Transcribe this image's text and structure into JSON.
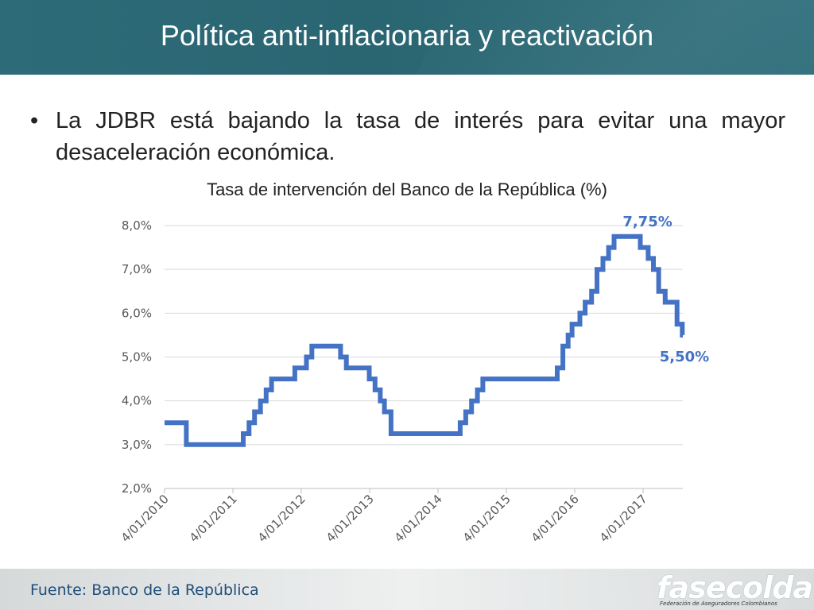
{
  "slide": {
    "title": "Política anti-inflacionaria y reactivación",
    "bullet_marker": "•",
    "bullet": "La JDBR está bajando la tasa de interés para evitar una mayor desaceleración económica.",
    "source": "Fuente: Banco de la República",
    "logo": {
      "word": "fasecolda",
      "tagline": "Federación de Aseguradores Colombianos"
    }
  },
  "colors": {
    "title_bar": "#2a6672",
    "line": "#4472c4",
    "grid": "#d9d9d9",
    "tick_text": "#595959"
  },
  "chart_data": {
    "type": "line",
    "title": "Tasa de intervención del Banco de la República (%)",
    "xlabel": "",
    "ylabel": "",
    "ylim": [
      2.0,
      8.0
    ],
    "y_ticks": [
      "2,0%",
      "3,0%",
      "4,0%",
      "5,0%",
      "6,0%",
      "7,0%",
      "8,0%"
    ],
    "x_ticks": [
      "4/01/2010",
      "4/01/2011",
      "4/01/2012",
      "4/01/2013",
      "4/01/2014",
      "4/01/2015",
      "4/01/2016",
      "4/01/2017"
    ],
    "grid": true,
    "legend": "none",
    "series": [
      {
        "points": [
          [
            "2010-01-04",
            3.5
          ],
          [
            "2010-04-30",
            3.5
          ],
          [
            "2010-04-30",
            3.0
          ],
          [
            "2011-02-28",
            3.0
          ],
          [
            "2011-02-28",
            3.25
          ],
          [
            "2011-03-31",
            3.25
          ],
          [
            "2011-03-31",
            3.5
          ],
          [
            "2011-04-29",
            3.5
          ],
          [
            "2011-04-29",
            3.75
          ],
          [
            "2011-05-31",
            3.75
          ],
          [
            "2011-05-31",
            4.0
          ],
          [
            "2011-06-30",
            4.0
          ],
          [
            "2011-06-30",
            4.25
          ],
          [
            "2011-07-29",
            4.25
          ],
          [
            "2011-07-29",
            4.5
          ],
          [
            "2011-11-30",
            4.5
          ],
          [
            "2011-11-30",
            4.75
          ],
          [
            "2012-01-31",
            4.75
          ],
          [
            "2012-01-31",
            5.0
          ],
          [
            "2012-02-29",
            5.0
          ],
          [
            "2012-02-29",
            5.25
          ],
          [
            "2012-07-31",
            5.25
          ],
          [
            "2012-07-31",
            5.0
          ],
          [
            "2012-08-31",
            5.0
          ],
          [
            "2012-08-31",
            4.75
          ],
          [
            "2012-12-31",
            4.75
          ],
          [
            "2012-12-31",
            4.5
          ],
          [
            "2013-01-31",
            4.5
          ],
          [
            "2013-01-31",
            4.25
          ],
          [
            "2013-02-28",
            4.25
          ],
          [
            "2013-02-28",
            4.0
          ],
          [
            "2013-03-22",
            4.0
          ],
          [
            "2013-03-22",
            3.75
          ],
          [
            "2013-04-26",
            3.75
          ],
          [
            "2013-04-26",
            3.25
          ],
          [
            "2014-04-30",
            3.25
          ],
          [
            "2014-04-30",
            3.5
          ],
          [
            "2014-05-30",
            3.5
          ],
          [
            "2014-05-30",
            3.75
          ],
          [
            "2014-06-30",
            3.75
          ],
          [
            "2014-06-30",
            4.0
          ],
          [
            "2014-07-31",
            4.0
          ],
          [
            "2014-07-31",
            4.25
          ],
          [
            "2014-08-29",
            4.25
          ],
          [
            "2014-08-29",
            4.5
          ],
          [
            "2015-09-30",
            4.5
          ],
          [
            "2015-09-30",
            4.75
          ],
          [
            "2015-10-30",
            4.75
          ],
          [
            "2015-10-30",
            5.25
          ],
          [
            "2015-11-27",
            5.25
          ],
          [
            "2015-11-27",
            5.5
          ],
          [
            "2015-12-18",
            5.5
          ],
          [
            "2015-12-18",
            5.75
          ],
          [
            "2016-01-29",
            5.75
          ],
          [
            "2016-01-29",
            6.0
          ],
          [
            "2016-02-26",
            6.0
          ],
          [
            "2016-02-26",
            6.25
          ],
          [
            "2016-03-31",
            6.25
          ],
          [
            "2016-03-31",
            6.5
          ],
          [
            "2016-04-29",
            6.5
          ],
          [
            "2016-04-29",
            7.0
          ],
          [
            "2016-05-31",
            7.0
          ],
          [
            "2016-05-31",
            7.25
          ],
          [
            "2016-06-30",
            7.25
          ],
          [
            "2016-06-30",
            7.5
          ],
          [
            "2016-07-29",
            7.5
          ],
          [
            "2016-07-29",
            7.75
          ],
          [
            "2016-12-16",
            7.75
          ],
          [
            "2016-12-16",
            7.5
          ],
          [
            "2017-01-27",
            7.5
          ],
          [
            "2017-01-27",
            7.25
          ],
          [
            "2017-02-24",
            7.25
          ],
          [
            "2017-02-24",
            7.0
          ],
          [
            "2017-03-24",
            7.0
          ],
          [
            "2017-03-24",
            6.5
          ],
          [
            "2017-04-28",
            6.5
          ],
          [
            "2017-04-28",
            6.25
          ],
          [
            "2017-06-30",
            6.25
          ],
          [
            "2017-06-30",
            5.75
          ],
          [
            "2017-07-28",
            5.75
          ],
          [
            "2017-07-28",
            5.5
          ],
          [
            "2017-07-31",
            5.5
          ]
        ]
      }
    ],
    "annotations": [
      {
        "text": "7,75%",
        "x": "2017-01-15",
        "y": 7.75,
        "position": "above"
      },
      {
        "text": "5,50%",
        "x": "2017-07-31",
        "y": 5.5,
        "position": "below"
      }
    ]
  }
}
